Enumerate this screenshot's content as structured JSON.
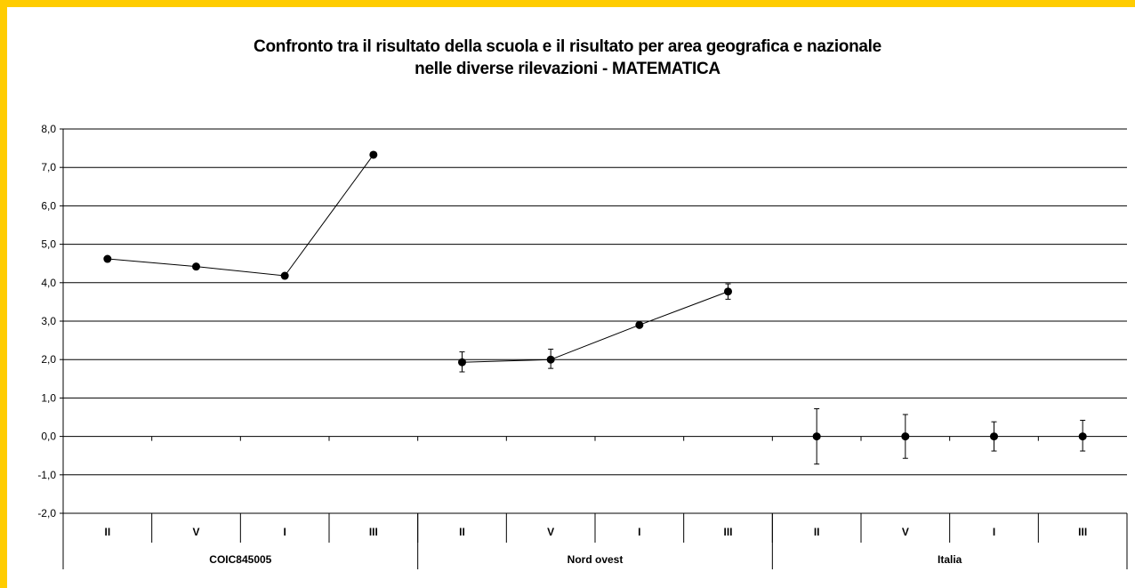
{
  "colors": {
    "frame": "#FFCC00",
    "line": "#000000",
    "gridline": "#000000",
    "background": "#ffffff"
  },
  "chart_data": {
    "type": "line",
    "title_line1": "Confronto tra il risultato della scuola e il risultato per area geografica e nazionale",
    "title_line2": "nelle diverse rilevazioni - MATEMATICA",
    "ylim": [
      -2,
      8
    ],
    "y_ticks": [
      "-2,0",
      "-1,0",
      "0,0",
      "1,0",
      "2,0",
      "3,0",
      "4,0",
      "5,0",
      "6,0",
      "7,0",
      "8,0"
    ],
    "grid": true,
    "legend": "none",
    "groups": [
      {
        "name": "COIC845005",
        "categories": [
          "II",
          "V",
          "I",
          "III"
        ],
        "values": [
          4.62,
          4.42,
          4.18,
          7.33
        ],
        "error_low": [
          null,
          null,
          null,
          null
        ],
        "error_high": [
          null,
          null,
          null,
          null
        ]
      },
      {
        "name": "Nord ovest",
        "categories": [
          "II",
          "V",
          "I",
          "III"
        ],
        "values": [
          1.93,
          2.0,
          2.9,
          3.77
        ],
        "error_low": [
          1.68,
          1.77,
          null,
          3.57
        ],
        "error_high": [
          2.2,
          2.27,
          null,
          3.97
        ]
      },
      {
        "name": "Italia",
        "categories": [
          "II",
          "V",
          "I",
          "III"
        ],
        "values": [
          0.0,
          0.0,
          0.0,
          0.0
        ],
        "error_low": [
          -0.72,
          -0.57,
          -0.38,
          -0.38
        ],
        "error_high": [
          0.72,
          0.57,
          0.38,
          0.42
        ]
      }
    ]
  }
}
